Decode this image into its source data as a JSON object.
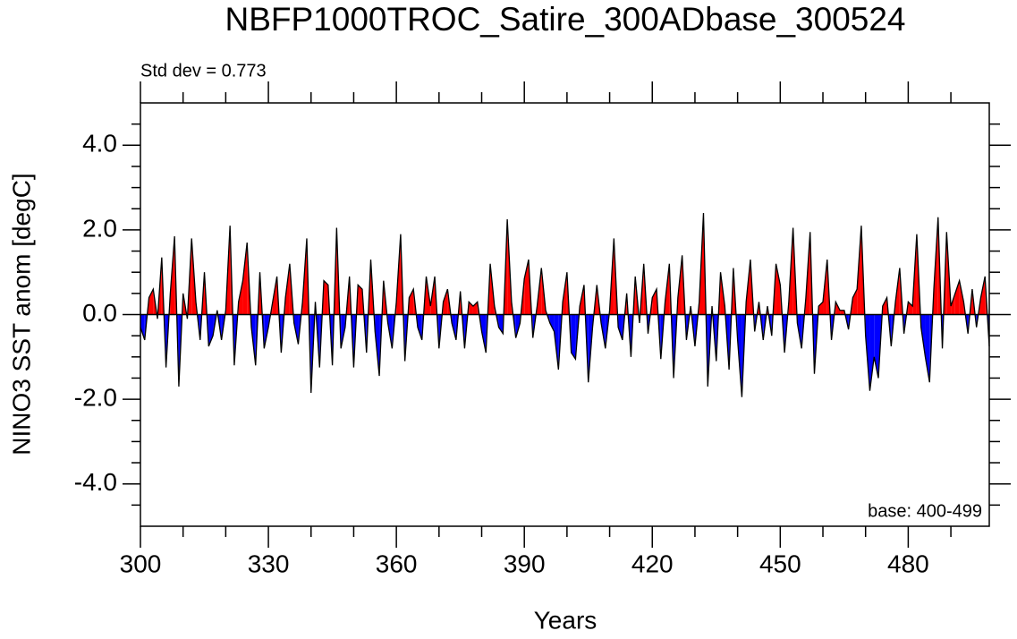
{
  "chart_data": {
    "type": "area",
    "title": "NBFP1000TROC_Satire_300ADbase_300524",
    "annotations": [
      "Std dev = 0.773",
      "base: 400-499"
    ],
    "xlabel": "Years",
    "ylabel": "NINO3 SST anom [degC]",
    "x": [
      300,
      301,
      302,
      303,
      304,
      305,
      306,
      307,
      308,
      309,
      310,
      311,
      312,
      313,
      314,
      315,
      316,
      317,
      318,
      319,
      320,
      321,
      322,
      323,
      324,
      325,
      326,
      327,
      328,
      329,
      330,
      331,
      332,
      333,
      334,
      335,
      336,
      337,
      338,
      339,
      340,
      341,
      342,
      343,
      344,
      345,
      346,
      347,
      348,
      349,
      350,
      351,
      352,
      353,
      354,
      355,
      356,
      357,
      358,
      359,
      360,
      361,
      362,
      363,
      364,
      365,
      366,
      367,
      368,
      369,
      370,
      371,
      372,
      373,
      374,
      375,
      376,
      377,
      378,
      379,
      380,
      381,
      382,
      383,
      384,
      385,
      386,
      387,
      388,
      389,
      390,
      391,
      392,
      393,
      394,
      395,
      396,
      397,
      398,
      399,
      400,
      401,
      402,
      403,
      404,
      405,
      406,
      407,
      408,
      409,
      410,
      411,
      412,
      413,
      414,
      415,
      416,
      417,
      418,
      419,
      420,
      421,
      422,
      423,
      424,
      425,
      426,
      427,
      428,
      429,
      430,
      431,
      432,
      433,
      434,
      435,
      436,
      437,
      438,
      439,
      440,
      441,
      442,
      443,
      444,
      445,
      446,
      447,
      448,
      449,
      450,
      451,
      452,
      453,
      454,
      455,
      456,
      457,
      458,
      459,
      460,
      461,
      462,
      463,
      464,
      465,
      466,
      467,
      468,
      469,
      470,
      471,
      472,
      473,
      474,
      475,
      476,
      477,
      478,
      479,
      480,
      481,
      482,
      483,
      484,
      485,
      486,
      487,
      488,
      489,
      490,
      491,
      492,
      493,
      494,
      495,
      496,
      497,
      498,
      499
    ],
    "values": [
      -0.3,
      -0.6,
      0.4,
      0.6,
      -0.1,
      1.35,
      -1.25,
      0.5,
      1.85,
      -1.7,
      0.5,
      -0.1,
      1.8,
      0.3,
      -0.6,
      1.0,
      -0.75,
      -0.5,
      0.1,
      -0.6,
      0.1,
      2.1,
      -1.2,
      0.3,
      0.8,
      1.7,
      -0.3,
      -1.2,
      1.0,
      -0.8,
      -0.3,
      0.3,
      0.9,
      -0.9,
      0.4,
      1.2,
      -0.2,
      -0.7,
      0.3,
      1.8,
      -1.85,
      0.3,
      -1.25,
      0.8,
      0.7,
      -1.2,
      2.05,
      -0.8,
      -0.3,
      0.9,
      -1.25,
      0.7,
      0.6,
      -0.9,
      1.3,
      -0.4,
      -1.45,
      0.8,
      -0.2,
      -0.8,
      0.3,
      1.9,
      -1.1,
      0.4,
      0.6,
      -0.3,
      -0.6,
      0.9,
      0.2,
      0.9,
      -0.8,
      0.3,
      0.6,
      -0.2,
      -0.6,
      0.55,
      -0.8,
      0.3,
      0.2,
      0.3,
      -0.4,
      -0.9,
      1.2,
      0.2,
      -0.3,
      -0.45,
      2.25,
      0.3,
      -0.55,
      -0.2,
      0.85,
      1.3,
      -0.55,
      0.2,
      1.1,
      0.1,
      -0.2,
      -0.4,
      -1.3,
      0.3,
      1.0,
      -0.9,
      -1.05,
      0.2,
      0.7,
      -1.6,
      -0.3,
      0.7,
      -0.2,
      -0.8,
      0.1,
      1.8,
      -0.3,
      -0.6,
      0.5,
      -1.0,
      0.9,
      -0.2,
      1.2,
      -0.45,
      0.4,
      0.6,
      -1.05,
      0.3,
      1.2,
      -1.5,
      0.4,
      1.4,
      -0.6,
      0.2,
      -0.75,
      0.3,
      2.4,
      -1.7,
      0.2,
      -1.1,
      1.0,
      0.2,
      -1.3,
      1.1,
      -0.6,
      -1.95,
      0.3,
      1.3,
      -0.4,
      0.3,
      -0.6,
      0.2,
      -0.5,
      1.2,
      0.7,
      -0.9,
      0.3,
      2.05,
      -0.2,
      -0.8,
      0.4,
      1.95,
      -1.4,
      0.2,
      0.3,
      1.3,
      -0.6,
      0.3,
      0.1,
      0.1,
      -0.35,
      0.4,
      0.6,
      2.1,
      -0.5,
      -1.8,
      -1.0,
      -1.5,
      0.2,
      0.4,
      -0.75,
      0.3,
      1.1,
      -0.45,
      0.3,
      0.2,
      1.9,
      -0.3,
      -1.0,
      -1.6,
      0.6,
      2.3,
      -0.8,
      1.95,
      0.2,
      0.5,
      0.8,
      0.3,
      -0.45,
      0.6,
      -0.3,
      0.4,
      0.9,
      -0.75
    ],
    "above_color": "#ff0000",
    "below_color": "#0000ff",
    "line_color": "#000000",
    "xlim": [
      300,
      499
    ],
    "ylim": [
      -5,
      5
    ],
    "xticks": [
      300,
      330,
      360,
      390,
      420,
      450,
      480
    ],
    "xminorticks": [
      310,
      320,
      340,
      350,
      370,
      380,
      400,
      410,
      430,
      440,
      460,
      470,
      490
    ],
    "yticks": [
      {
        "value": -4,
        "label": "-4.0"
      },
      {
        "value": -2,
        "label": "-2.0"
      },
      {
        "value": 0,
        "label": "0.0"
      },
      {
        "value": 2,
        "label": "2.0"
      },
      {
        "value": 4,
        "label": "4.0"
      }
    ],
    "yminorticks": [
      -4.5,
      -3.5,
      -3,
      -2.5,
      -1.5,
      -1,
      -0.5,
      0.5,
      1,
      1.5,
      2.5,
      3,
      3.5,
      4.5
    ],
    "reference_line": 0
  }
}
